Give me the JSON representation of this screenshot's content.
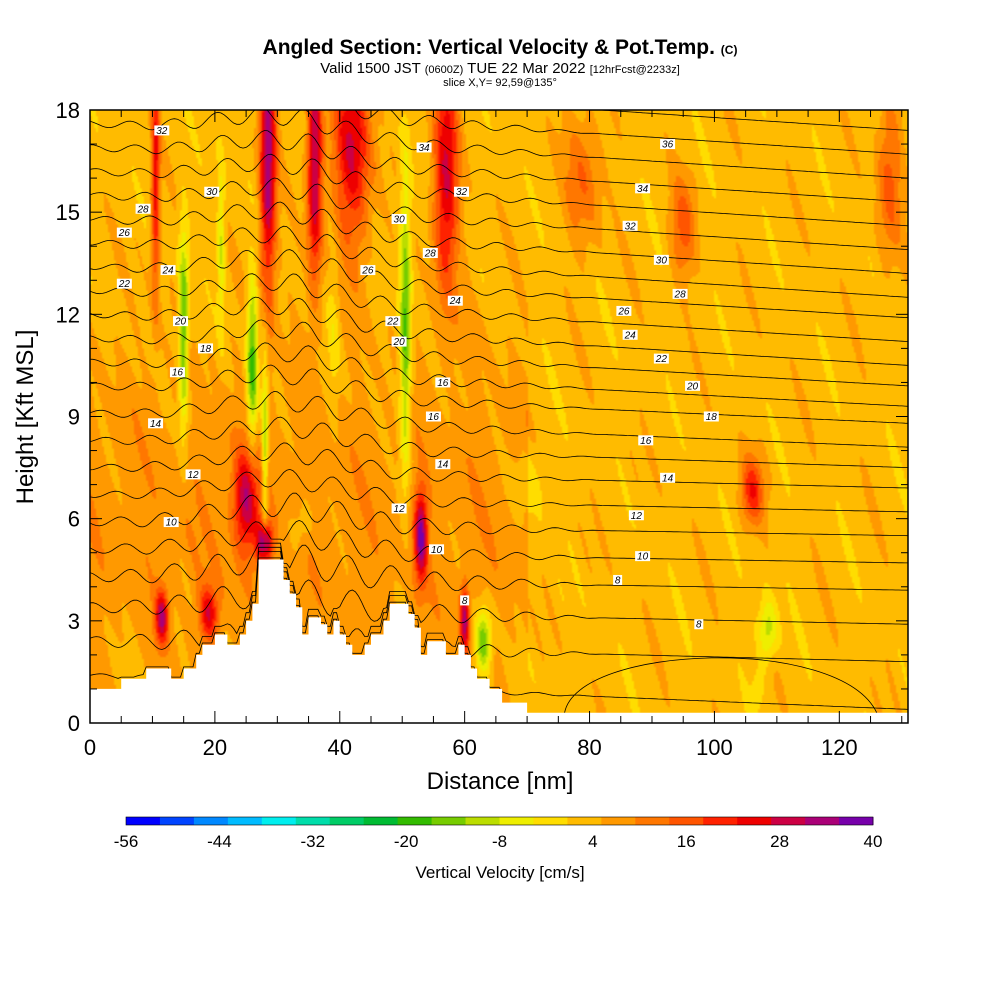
{
  "chart_data": {
    "type": "heatmap",
    "title": "Angled Section: Vertical Velocity & Pot.Temp.",
    "title_suffix": "(C)",
    "subtitle_prefix": "Valid 1500 JST",
    "subtitle_utc": "(0600Z)",
    "subtitle_date": "TUE 22 Mar 2022",
    "subtitle_fcst": "[12hrFcst@2233z]",
    "slice_label": "slice X,Y= 92,59@135°",
    "xlabel": "Distance [nm]",
    "ylabel": "Height [Kft MSL]",
    "xlim": [
      0,
      131
    ],
    "ylim": [
      0,
      18
    ],
    "x_ticks": [
      "0",
      "20",
      "40",
      "60",
      "80",
      "100",
      "120"
    ],
    "y_ticks": [
      "0",
      "3",
      "6",
      "9",
      "12",
      "15",
      "18"
    ],
    "colorbar": {
      "label": "Vertical Velocity [cm/s]",
      "tick_labels": [
        "-56",
        "-44",
        "-32",
        "-20",
        "-8",
        "4",
        "16",
        "28",
        "40"
      ],
      "colors": [
        "#0000ff",
        "#0044ff",
        "#0088ff",
        "#00bbff",
        "#00eeee",
        "#00ddaa",
        "#00cc66",
        "#00bb33",
        "#33bb00",
        "#77cc00",
        "#bbdd00",
        "#eeee00",
        "#ffdd00",
        "#ffbb00",
        "#ff9900",
        "#ff7700",
        "#ff5500",
        "#ff2200",
        "#ee0000",
        "#cc0044",
        "#aa0077",
        "#7700aa"
      ]
    },
    "terrain": [
      [
        0,
        1
      ],
      [
        5,
        1
      ],
      [
        5,
        1.3
      ],
      [
        9,
        1.3
      ],
      [
        9,
        1.6
      ],
      [
        13,
        1.6
      ],
      [
        13,
        1.3
      ],
      [
        15,
        1.3
      ],
      [
        15,
        1.6
      ],
      [
        17,
        1.6
      ],
      [
        17,
        2
      ],
      [
        18,
        2
      ],
      [
        18,
        2.3
      ],
      [
        20,
        2.3
      ],
      [
        20,
        2.6
      ],
      [
        22,
        2.6
      ],
      [
        22,
        2.3
      ],
      [
        24,
        2.3
      ],
      [
        24,
        2.6
      ],
      [
        25,
        2.6
      ],
      [
        25,
        3
      ],
      [
        26,
        3
      ],
      [
        26,
        3.5
      ],
      [
        27,
        3.5
      ],
      [
        27,
        4.8
      ],
      [
        31,
        4.8
      ],
      [
        31,
        4.2
      ],
      [
        32,
        4.2
      ],
      [
        32,
        3.8
      ],
      [
        33,
        3.8
      ],
      [
        33,
        3.4
      ],
      [
        34,
        3.4
      ],
      [
        34,
        2.6
      ],
      [
        35,
        2.6
      ],
      [
        35,
        3.1
      ],
      [
        37,
        3.1
      ],
      [
        37,
        2.9
      ],
      [
        38,
        2.9
      ],
      [
        38,
        2.6
      ],
      [
        39,
        2.6
      ],
      [
        39,
        3
      ],
      [
        40,
        3
      ],
      [
        40,
        2.6
      ],
      [
        41,
        2.6
      ],
      [
        41,
        2.3
      ],
      [
        42,
        2.3
      ],
      [
        42,
        2
      ],
      [
        44,
        2
      ],
      [
        44,
        2.3
      ],
      [
        45,
        2.3
      ],
      [
        45,
        2.6
      ],
      [
        47,
        2.6
      ],
      [
        47,
        3
      ],
      [
        48,
        3
      ],
      [
        48,
        3.5
      ],
      [
        51,
        3.5
      ],
      [
        51,
        3.2
      ],
      [
        52,
        3.2
      ],
      [
        52,
        2.8
      ],
      [
        53,
        2.8
      ],
      [
        53,
        2
      ],
      [
        54,
        2
      ],
      [
        54,
        2.4
      ],
      [
        57,
        2.4
      ],
      [
        57,
        2
      ],
      [
        59,
        2
      ],
      [
        59,
        2.3
      ],
      [
        60,
        2.3
      ],
      [
        60,
        2
      ],
      [
        61,
        2
      ],
      [
        61,
        1.6
      ],
      [
        62,
        1.6
      ],
      [
        62,
        1.3
      ],
      [
        64,
        1.3
      ],
      [
        64,
        1
      ],
      [
        66,
        1
      ],
      [
        66,
        0.6
      ],
      [
        70,
        0.6
      ],
      [
        70,
        0.3
      ],
      [
        131,
        0.3
      ]
    ],
    "theta_lines": [
      {
        "y0": 1.4,
        "dy": 1.0,
        "decay": 0.0,
        "amp": 0.2
      },
      {
        "y0": 2.4,
        "dy": 0.6,
        "decay": 0.35,
        "amp": 0.5
      },
      {
        "y0": 3.4,
        "dy": 0.5,
        "decay": 0.5,
        "amp": 0.5
      },
      {
        "y0": 4.3,
        "dy": 0.4,
        "decay": 0.6,
        "amp": 0.5
      },
      {
        "y0": 5.1,
        "dy": 0.4,
        "decay": 0.6,
        "amp": 0.4
      },
      {
        "y0": 5.9,
        "dy": 0.4,
        "decay": 0.6,
        "amp": 0.4
      },
      {
        "y0": 6.7,
        "dy": 0.5,
        "decay": 0.6,
        "amp": 0.3
      },
      {
        "y0": 7.5,
        "dy": 0.6,
        "decay": 0.6,
        "amp": 0.3
      },
      {
        "y0": 8.3,
        "dy": 0.8,
        "decay": 0.6,
        "amp": 0.3
      },
      {
        "y0": 9.1,
        "dy": 1.0,
        "decay": 0.6,
        "amp": 0.3
      },
      {
        "y0": 9.9,
        "dy": 1.1,
        "decay": 0.6,
        "amp": 0.3
      },
      {
        "y0": 10.6,
        "dy": 1.3,
        "decay": 0.6,
        "amp": 0.3
      },
      {
        "y0": 11.3,
        "dy": 1.4,
        "decay": 0.6,
        "amp": 0.3
      },
      {
        "y0": 12.0,
        "dy": 1.5,
        "decay": 0.6,
        "amp": 0.3
      },
      {
        "y0": 12.7,
        "dy": 1.5,
        "decay": 0.6,
        "amp": 0.3
      },
      {
        "y0": 13.4,
        "dy": 1.5,
        "decay": 0.6,
        "amp": 0.3
      },
      {
        "y0": 14.1,
        "dy": 1.6,
        "decay": 0.6,
        "amp": 0.3
      },
      {
        "y0": 14.8,
        "dy": 1.6,
        "decay": 0.6,
        "amp": 0.3
      },
      {
        "y0": 15.5,
        "dy": 1.6,
        "decay": 0.6,
        "amp": 0.3
      },
      {
        "y0": 16.2,
        "dy": 1.6,
        "decay": 0.6,
        "amp": 0.3
      },
      {
        "y0": 16.9,
        "dy": 1.6,
        "decay": 0.6,
        "amp": 0.3
      },
      {
        "y0": 17.6,
        "dy": 1.6,
        "decay": 0.6,
        "amp": 0.3
      },
      {
        "y0": 18.3,
        "dy": 1.6,
        "decay": 0.6,
        "amp": 0.3
      },
      {
        "y0": 19.0,
        "dy": 1.6,
        "decay": 0.6,
        "amp": 0.3
      }
    ],
    "contour_labels": [
      {
        "text": "32",
        "x": 11.5,
        "y": 17.4
      },
      {
        "text": "34",
        "x": 53.5,
        "y": 16.9
      },
      {
        "text": "36",
        "x": 92.5,
        "y": 17.0
      },
      {
        "text": "30",
        "x": 19.5,
        "y": 15.6
      },
      {
        "text": "32",
        "x": 59.5,
        "y": 15.6
      },
      {
        "text": "34",
        "x": 88.5,
        "y": 15.7
      },
      {
        "text": "28",
        "x": 8.5,
        "y": 15.1
      },
      {
        "text": "30",
        "x": 49.5,
        "y": 14.8
      },
      {
        "text": "32",
        "x": 86.5,
        "y": 14.6
      },
      {
        "text": "26",
        "x": 5.5,
        "y": 14.4
      },
      {
        "text": "28",
        "x": 54.5,
        "y": 13.8
      },
      {
        "text": "30",
        "x": 91.5,
        "y": 13.6
      },
      {
        "text": "24",
        "x": 12.5,
        "y": 13.3
      },
      {
        "text": "26",
        "x": 44.5,
        "y": 13.3
      },
      {
        "text": "28",
        "x": 94.5,
        "y": 12.6
      },
      {
        "text": "22",
        "x": 5.5,
        "y": 12.9
      },
      {
        "text": "24",
        "x": 58.5,
        "y": 12.4
      },
      {
        "text": "26",
        "x": 85.5,
        "y": 12.1
      },
      {
        "text": "20",
        "x": 14.5,
        "y": 11.8
      },
      {
        "text": "22",
        "x": 48.5,
        "y": 11.8
      },
      {
        "text": "24",
        "x": 86.5,
        "y": 11.4
      },
      {
        "text": "18",
        "x": 18.5,
        "y": 11.0
      },
      {
        "text": "20",
        "x": 49.5,
        "y": 11.2
      },
      {
        "text": "22",
        "x": 91.5,
        "y": 10.7
      },
      {
        "text": "16",
        "x": 14.0,
        "y": 10.3
      },
      {
        "text": "16",
        "x": 56.5,
        "y": 10.0
      },
      {
        "text": "20",
        "x": 96.5,
        "y": 9.9
      },
      {
        "text": "14",
        "x": 10.5,
        "y": 8.8
      },
      {
        "text": "16",
        "x": 55.0,
        "y": 9.0
      },
      {
        "text": "18",
        "x": 99.5,
        "y": 9.0
      },
      {
        "text": "12",
        "x": 16.5,
        "y": 7.3
      },
      {
        "text": "14",
        "x": 56.5,
        "y": 7.6
      },
      {
        "text": "16",
        "x": 89.0,
        "y": 8.3
      },
      {
        "text": "10",
        "x": 13.0,
        "y": 5.9
      },
      {
        "text": "12",
        "x": 49.5,
        "y": 6.3
      },
      {
        "text": "14",
        "x": 92.5,
        "y": 7.2
      },
      {
        "text": "10",
        "x": 55.5,
        "y": 5.1
      },
      {
        "text": "12",
        "x": 87.5,
        "y": 6.1
      },
      {
        "text": "10",
        "x": 88.5,
        "y": 4.9
      },
      {
        "text": "8",
        "x": 60.0,
        "y": 3.6
      },
      {
        "text": "8",
        "x": 84.5,
        "y": 4.2
      },
      {
        "text": "8",
        "x": 97.5,
        "y": 2.9
      }
    ],
    "velocity_features": [
      {
        "x": 10.5,
        "y": 16.0,
        "sx": 0.7,
        "sy": 3.5,
        "v": 22
      },
      {
        "x": 11.5,
        "y": 3.1,
        "sx": 1.0,
        "sy": 0.8,
        "v": 26
      },
      {
        "x": 15.0,
        "y": 11.5,
        "sx": 0.8,
        "sy": 3.0,
        "v": -22
      },
      {
        "x": 19.0,
        "y": 3.2,
        "sx": 1.5,
        "sy": 0.8,
        "v": 20
      },
      {
        "x": 21.0,
        "y": 14.0,
        "sx": 0.6,
        "sy": 2.5,
        "v": -12
      },
      {
        "x": 26.0,
        "y": 10.5,
        "sx": 0.9,
        "sy": 2.5,
        "v": -24
      },
      {
        "x": 28.0,
        "y": 8.0,
        "sx": 0.5,
        "sy": 3.0,
        "v": -18
      },
      {
        "x": 25.0,
        "y": 6.5,
        "sx": 2.0,
        "sy": 1.5,
        "v": 24
      },
      {
        "x": 28.0,
        "y": 5.3,
        "sx": 1.2,
        "sy": 0.6,
        "v": 30
      },
      {
        "x": 28.5,
        "y": 16.5,
        "sx": 1.3,
        "sy": 4.0,
        "v": 32
      },
      {
        "x": 36.0,
        "y": 16.5,
        "sx": 1.2,
        "sy": 3.5,
        "v": 30
      },
      {
        "x": 42.0,
        "y": 17.0,
        "sx": 3.0,
        "sy": 3.0,
        "v": 24
      },
      {
        "x": 39.0,
        "y": 11.5,
        "sx": 1.0,
        "sy": 2.5,
        "v": -6
      },
      {
        "x": 50.5,
        "y": 11.5,
        "sx": 0.9,
        "sy": 4.5,
        "v": -22
      },
      {
        "x": 53.0,
        "y": 5.5,
        "sx": 1.0,
        "sy": 1.3,
        "v": 30
      },
      {
        "x": 57.0,
        "y": 16.0,
        "sx": 2.0,
        "sy": 3.5,
        "v": 24
      },
      {
        "x": 60.0,
        "y": 3.0,
        "sx": 0.7,
        "sy": 1.0,
        "v": 28
      },
      {
        "x": 63.0,
        "y": 2.4,
        "sx": 1.3,
        "sy": 1.0,
        "v": -22
      },
      {
        "x": 106.0,
        "y": 6.8,
        "sx": 1.8,
        "sy": 1.0,
        "v": 18
      },
      {
        "x": 108.5,
        "y": 2.7,
        "sx": 1.5,
        "sy": 0.9,
        "v": -14
      },
      {
        "x": 107.0,
        "y": 1.0,
        "sx": 1.0,
        "sy": 0.6,
        "v": -6
      },
      {
        "x": 95.0,
        "y": 14.5,
        "sx": 2.0,
        "sy": 1.5,
        "v": 12
      },
      {
        "x": 128.0,
        "y": 16.0,
        "sx": 2.0,
        "sy": 2.5,
        "v": 12
      },
      {
        "x": 34.0,
        "y": 5.8,
        "sx": 2.0,
        "sy": 0.8,
        "v": -6
      },
      {
        "x": 79.0,
        "y": 16.0,
        "sx": 3.0,
        "sy": 2.0,
        "v": 10
      },
      {
        "x": 70.0,
        "y": 7.0,
        "sx": 3.0,
        "sy": 1.0,
        "v": -6
      }
    ]
  }
}
